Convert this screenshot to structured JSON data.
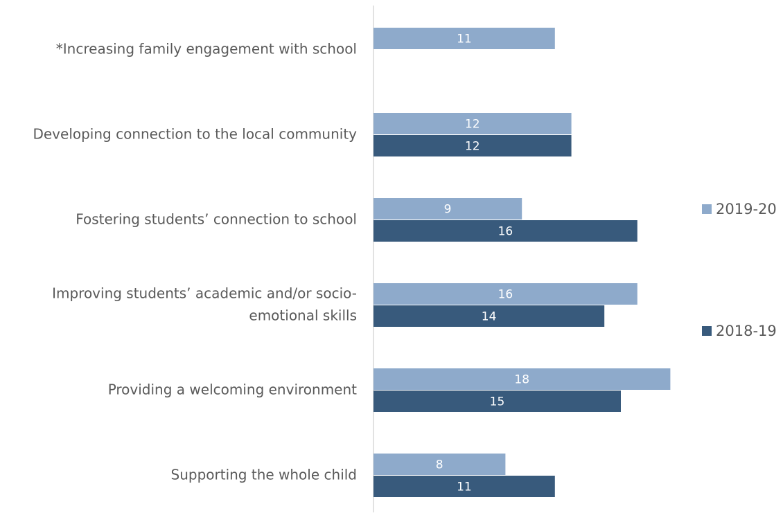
{
  "chart_data": {
    "type": "bar",
    "orientation": "horizontal",
    "title": "",
    "xlabel": "",
    "ylabel": "",
    "xlim": [
      0,
      18
    ],
    "grid": false,
    "legend_position": "right",
    "categories": [
      "*Increasing family engagement with school",
      "Developing connection to the local community",
      "Fostering students’ connection to school",
      "Improving students’ academic and/or socio-emotional skills",
      "Providing a welcoming environment",
      "Supporting the whole child"
    ],
    "category_label_lines": [
      [
        "*Increasing family engagement with school"
      ],
      [
        "Developing connection to the local community"
      ],
      [
        "Fostering students’ connection to school"
      ],
      [
        "Improving students’ academic and/or socio-",
        "emotional skills"
      ],
      [
        "Providing a welcoming environment"
      ],
      [
        "Supporting the whole child"
      ]
    ],
    "series": [
      {
        "name": "2019-20",
        "color": "#8eaacb",
        "values": [
          11,
          12,
          9,
          16,
          18,
          8
        ]
      },
      {
        "name": "2018-19",
        "color": "#385a7c",
        "values": [
          null,
          12,
          16,
          14,
          15,
          11
        ]
      }
    ],
    "axis_color": "#d9d9d9",
    "label_color": "#595959",
    "data_label_color": "#ffffff"
  }
}
